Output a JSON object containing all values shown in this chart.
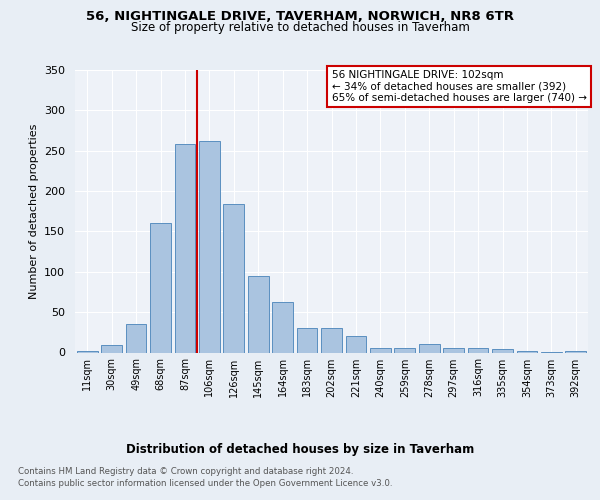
{
  "title1": "56, NIGHTINGALE DRIVE, TAVERHAM, NORWICH, NR8 6TR",
  "title2": "Size of property relative to detached houses in Taverham",
  "xlabel": "Distribution of detached houses by size in Taverham",
  "ylabel": "Number of detached properties",
  "footnote1": "Contains HM Land Registry data © Crown copyright and database right 2024.",
  "footnote2": "Contains public sector information licensed under the Open Government Licence v3.0.",
  "categories": [
    "11sqm",
    "30sqm",
    "49sqm",
    "68sqm",
    "87sqm",
    "106sqm",
    "126sqm",
    "145sqm",
    "164sqm",
    "183sqm",
    "202sqm",
    "221sqm",
    "240sqm",
    "259sqm",
    "278sqm",
    "297sqm",
    "316sqm",
    "335sqm",
    "354sqm",
    "373sqm",
    "392sqm"
  ],
  "values": [
    2,
    9,
    35,
    161,
    258,
    262,
    184,
    95,
    62,
    30,
    30,
    21,
    6,
    5,
    11,
    5,
    5,
    4,
    2,
    1,
    2
  ],
  "bar_color": "#aac4e0",
  "bar_edge_color": "#5a8fc0",
  "vline_color": "#cc0000",
  "annotation_text": "56 NIGHTINGALE DRIVE: 102sqm\n← 34% of detached houses are smaller (392)\n65% of semi-detached houses are larger (740) →",
  "annotation_box_color": "#ffffff",
  "annotation_box_edge": "#cc0000",
  "bg_color": "#e8eef5",
  "plot_bg_color": "#eef2f8",
  "ylim": [
    0,
    350
  ],
  "yticks": [
    0,
    50,
    100,
    150,
    200,
    250,
    300,
    350
  ]
}
